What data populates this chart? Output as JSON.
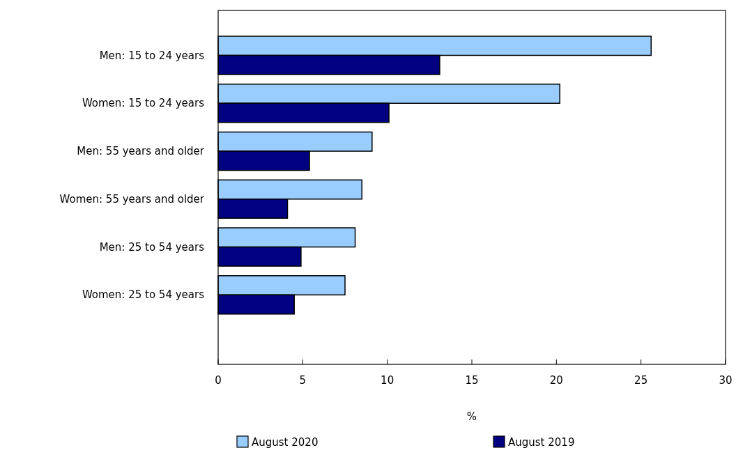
{
  "chart_data": {
    "type": "bar",
    "orientation": "horizontal",
    "categories": [
      "Men: 15 to 24 years",
      "Women: 15 to 24 years",
      "Men: 55 years and older",
      "Women: 55 years and older",
      "Men: 25 to 54 years",
      "Women: 25 to 54 years"
    ],
    "series": [
      {
        "name": "August 2020",
        "color": "#99ccff",
        "values": [
          25.6,
          20.2,
          9.1,
          8.5,
          8.1,
          7.5
        ]
      },
      {
        "name": "August 2019",
        "color": "#000080",
        "values": [
          13.1,
          10.1,
          5.4,
          4.1,
          4.9,
          4.5
        ]
      }
    ],
    "xlim": [
      0,
      30
    ],
    "xticks": [
      0,
      5,
      10,
      15,
      20,
      25,
      30
    ],
    "xlabel": "%",
    "grid": false,
    "legend": "bottom"
  }
}
